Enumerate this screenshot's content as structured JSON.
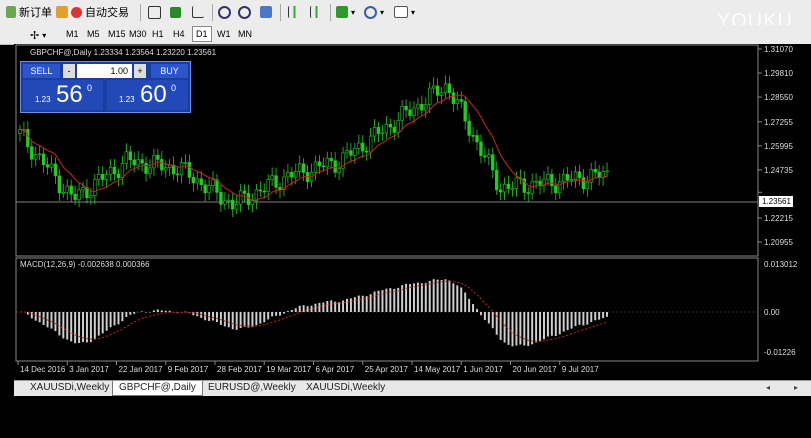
{
  "toolbar": {
    "new_order_label": "新订单",
    "auto_trading_label": "自动交易"
  },
  "timeframes": [
    "M1",
    "M5",
    "M15",
    "M30",
    "H1",
    "H4",
    "D1",
    "W1",
    "MN"
  ],
  "active_timeframe": "D1",
  "chart": {
    "header": "GBPCHF@,Daily  1.23334 1.23564 1.23220 1.23561",
    "current_price": "1.23561",
    "price_ticks": [
      "1.31070",
      "1.29810",
      "1.28550",
      "1.27255",
      "1.25995",
      "1.24735",
      "1.23561",
      "1.22215",
      "1.20955"
    ],
    "macd_label": "MACD(12,26,9) -0.002638 0.000366",
    "macd_ticks": [
      "0.013012",
      "0.00",
      "-0.01226"
    ],
    "date_ticks": [
      "14 Dec 2016",
      "3 Jan 2017",
      "22 Jan 2017",
      "9 Feb 2017",
      "28 Feb 2017",
      "19 Mar 2017",
      "6 Apr 2017",
      "25 Apr 2017",
      "14 May 2017",
      "1 Jun 2017",
      "20 Jun 2017",
      "9 Jul 2017"
    ]
  },
  "trade_panel": {
    "sell_label": "SELL",
    "buy_label": "BUY",
    "lot_value": "1.00",
    "sell_prefix": "1.23",
    "sell_big": "56",
    "sell_sup": "0",
    "buy_prefix": "1.23",
    "buy_big": "60",
    "buy_sup": "0"
  },
  "tabs": [
    "XAUUSDi,Weekly",
    "GBPCHF@,Daily",
    "EURUSD@,Weekly",
    "XAUUSDi,Weekly"
  ],
  "active_tab": "GBPCHF@,Daily",
  "watermark": "YOUKU",
  "colors": {
    "bull_candle": "#22cc22",
    "moving_average": "#cc2222",
    "macd_bar": "#cfcfcf",
    "signal_line": "#cc2222"
  },
  "chart_data": {
    "type": "line",
    "title": "GBPCHF@,Daily",
    "x": [
      "14 Dec 2016",
      "3 Jan 2017",
      "22 Jan 2017",
      "9 Feb 2017",
      "28 Feb 2017",
      "19 Mar 2017",
      "6 Apr 2017",
      "25 Apr 2017",
      "14 May 2017",
      "1 Jun 2017",
      "20 Jun 2017",
      "9 Jul 2017"
    ],
    "series": [
      {
        "values": [
          1.266,
          1.232,
          1.252,
          1.248,
          1.229,
          1.244,
          1.252,
          1.272,
          1.292,
          1.238,
          1.241,
          1.245
        ]
      }
    ],
    "ylim": [
      1.20955,
      1.3107
    ]
  }
}
